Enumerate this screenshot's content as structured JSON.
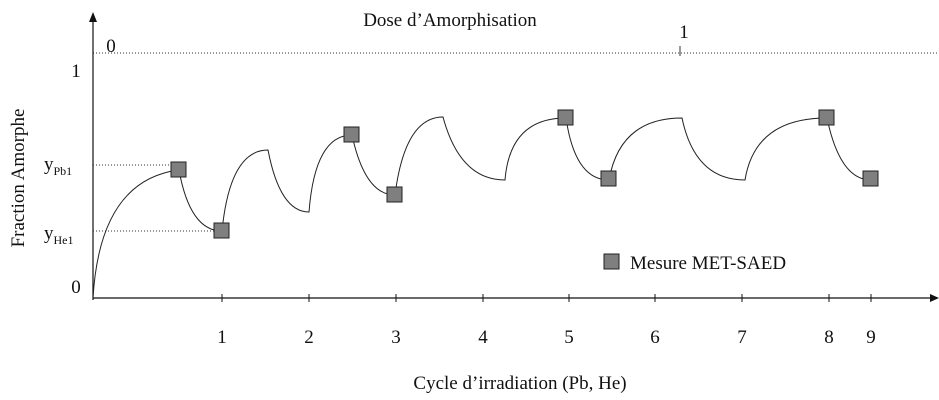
{
  "title": "Dose d’Amorphisation",
  "top_axis": {
    "ticks": [
      "0",
      "1"
    ]
  },
  "y_axis": {
    "title": "Fraction Amorphe",
    "ticks": [
      "1",
      "0"
    ],
    "levels": [
      {
        "base": "y",
        "sub": "Pb1"
      },
      {
        "base": "y",
        "sub": "He1"
      }
    ]
  },
  "x_axis": {
    "title": "Cycle d’irradiation (Pb, He)",
    "ticks": [
      "1",
      "2",
      "3",
      "4",
      "5",
      "6",
      "7",
      "8",
      "9"
    ]
  },
  "legend": {
    "label": "Mesure MET-SAED"
  }
}
